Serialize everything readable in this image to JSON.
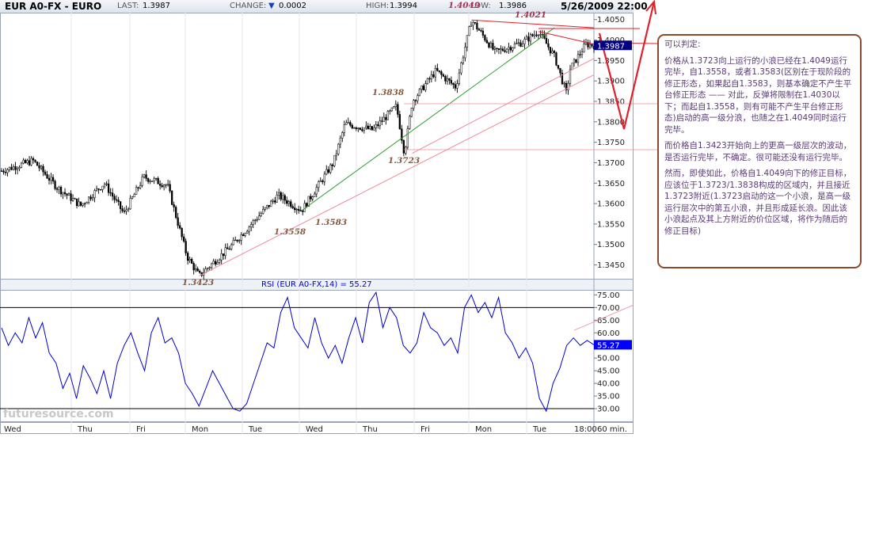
{
  "header": {
    "symbol": "EUR A0-FX - EURO",
    "last_label": "LAST:",
    "last_value": "1.3987",
    "change_label": "CHANGE:",
    "change_value": "0.0002",
    "high_label": "HIGH:",
    "high_value": "1.3994",
    "low_label": "LOW:",
    "low_value": "1.3986",
    "date": "5/26/2009 22:00"
  },
  "rsi_title": "RSI (EUR A0-FX,14) = 55.27",
  "watermark": "futuresource.com",
  "annotation": {
    "heading": "可以判定:",
    "p1": "价格从1.3723向上运行的小浪已经在1.4049运行完毕，自1.3558，或者1.3583(区别在于现阶段的修正形态，如果起自1.3583，则基本确定不产生平台修正形态 —— 对此，反弹将限制在1.4030以下；而起自1.3558，则有可能不产生平台修正形态)启动的高一级分浪，也随之在1.4049同时运行完毕。",
    "p2": "而价格自1.3423开始向上的更高一级层次的波动，是否运行完毕，不确定。很可能还没有运行完毕。",
    "p3": "然而，即使如此，价格自1.4049向下的修正目标，应该位于1.3723/1.3838构成的区域内，并且接近1.3723附近(1.3723启动的这一个小浪，是高一级运行层次中的第五小浪，并且形成延长浪。因此该小浪起点及其上方附近的价位区域，将作为随后的修正目标)"
  },
  "colors": {
    "candle": "#000000",
    "rsi_line": "#0000cc",
    "trend_green": "#2e9e2e",
    "trend_pink": "#f08a9a",
    "arrow_red": "#e0202a",
    "annot_border": "#8b4a2b",
    "last_tag": "#000080"
  },
  "chart_data": [
    {
      "type": "candlestick",
      "title": "EUR A0-FX - EURO",
      "interval": "60 min.",
      "x_labels": [
        "Wed",
        "Thu",
        "Fri",
        "Mon",
        "Tue",
        "Wed",
        "Thu",
        "Fri",
        "Mon",
        "Tue",
        "18:00"
      ],
      "ylim": [
        1.342,
        1.4065
      ],
      "y_ticks": [
        "1.4050",
        "1.4000",
        "1.3950",
        "1.3900",
        "1.3850",
        "1.3800",
        "1.3750",
        "1.3700",
        "1.3650",
        "1.3600",
        "1.3550",
        "1.3500",
        "1.3450"
      ],
      "price_path": [
        {
          "t": 0,
          "p": 1.368
        },
        {
          "t": 8,
          "p": 1.3705
        },
        {
          "t": 14,
          "p": 1.364
        },
        {
          "t": 20,
          "p": 1.3595
        },
        {
          "t": 26,
          "p": 1.365
        },
        {
          "t": 31,
          "p": 1.3575
        },
        {
          "t": 36,
          "p": 1.3665
        },
        {
          "t": 42,
          "p": 1.3645
        },
        {
          "t": 47,
          "p": 1.347
        },
        {
          "t": 50,
          "p": 1.3423
        },
        {
          "t": 58,
          "p": 1.3495
        },
        {
          "t": 64,
          "p": 1.3558
        },
        {
          "t": 70,
          "p": 1.362
        },
        {
          "t": 76,
          "p": 1.3583
        },
        {
          "t": 84,
          "p": 1.37
        },
        {
          "t": 87,
          "p": 1.3795
        },
        {
          "t": 94,
          "p": 1.378
        },
        {
          "t": 100,
          "p": 1.3838
        },
        {
          "t": 102,
          "p": 1.3723
        },
        {
          "t": 104,
          "p": 1.385
        },
        {
          "t": 110,
          "p": 1.3925
        },
        {
          "t": 115,
          "p": 1.3885
        },
        {
          "t": 119,
          "p": 1.4049
        },
        {
          "t": 125,
          "p": 1.397
        },
        {
          "t": 132,
          "p": 1.3995
        },
        {
          "t": 136,
          "p": 1.4021
        },
        {
          "t": 140,
          "p": 1.396
        },
        {
          "t": 143,
          "p": 1.387
        },
        {
          "t": 144,
          "p": 1.393
        },
        {
          "t": 148,
          "p": 1.399
        },
        {
          "t": 150,
          "p": 1.3987
        }
      ],
      "last_price": "1.3987",
      "annotations": [
        "1.4049",
        "1.4021",
        "1.3838",
        "1.3723",
        "1.3558",
        "1.3583",
        "1.3423"
      ]
    },
    {
      "type": "line",
      "title": "RSI (EUR A0-FX,14) = 55.27",
      "ylim": [
        25,
        77
      ],
      "y_ticks": [
        "75.00",
        "70.00",
        "65.00",
        "60.00",
        "55.00",
        "50.00",
        "45.00",
        "40.00",
        "35.00",
        "30.00"
      ],
      "series": [
        {
          "name": "RSI (EUR A0-FX,14)",
          "values": [
            62,
            55,
            60,
            56,
            66,
            58,
            64,
            52,
            48,
            38,
            44,
            34,
            47,
            42,
            36,
            45,
            34,
            48,
            55,
            60,
            52,
            45,
            60,
            66,
            56,
            58,
            52,
            40,
            36,
            31,
            38,
            45,
            40,
            35,
            30,
            29,
            32,
            40,
            48,
            56,
            54,
            68,
            74,
            62,
            58,
            54,
            66,
            56,
            50,
            55,
            48,
            58,
            66,
            56,
            72,
            76,
            62,
            70,
            66,
            55,
            52,
            56,
            68,
            62,
            60,
            55,
            58,
            52,
            70,
            75,
            68,
            72,
            66,
            74,
            60,
            56,
            50,
            54,
            48,
            34,
            29,
            40,
            46,
            55,
            58,
            55,
            57,
            55.27
          ]
        }
      ],
      "last_value": "55.27",
      "levels": [
        70,
        30
      ]
    }
  ]
}
